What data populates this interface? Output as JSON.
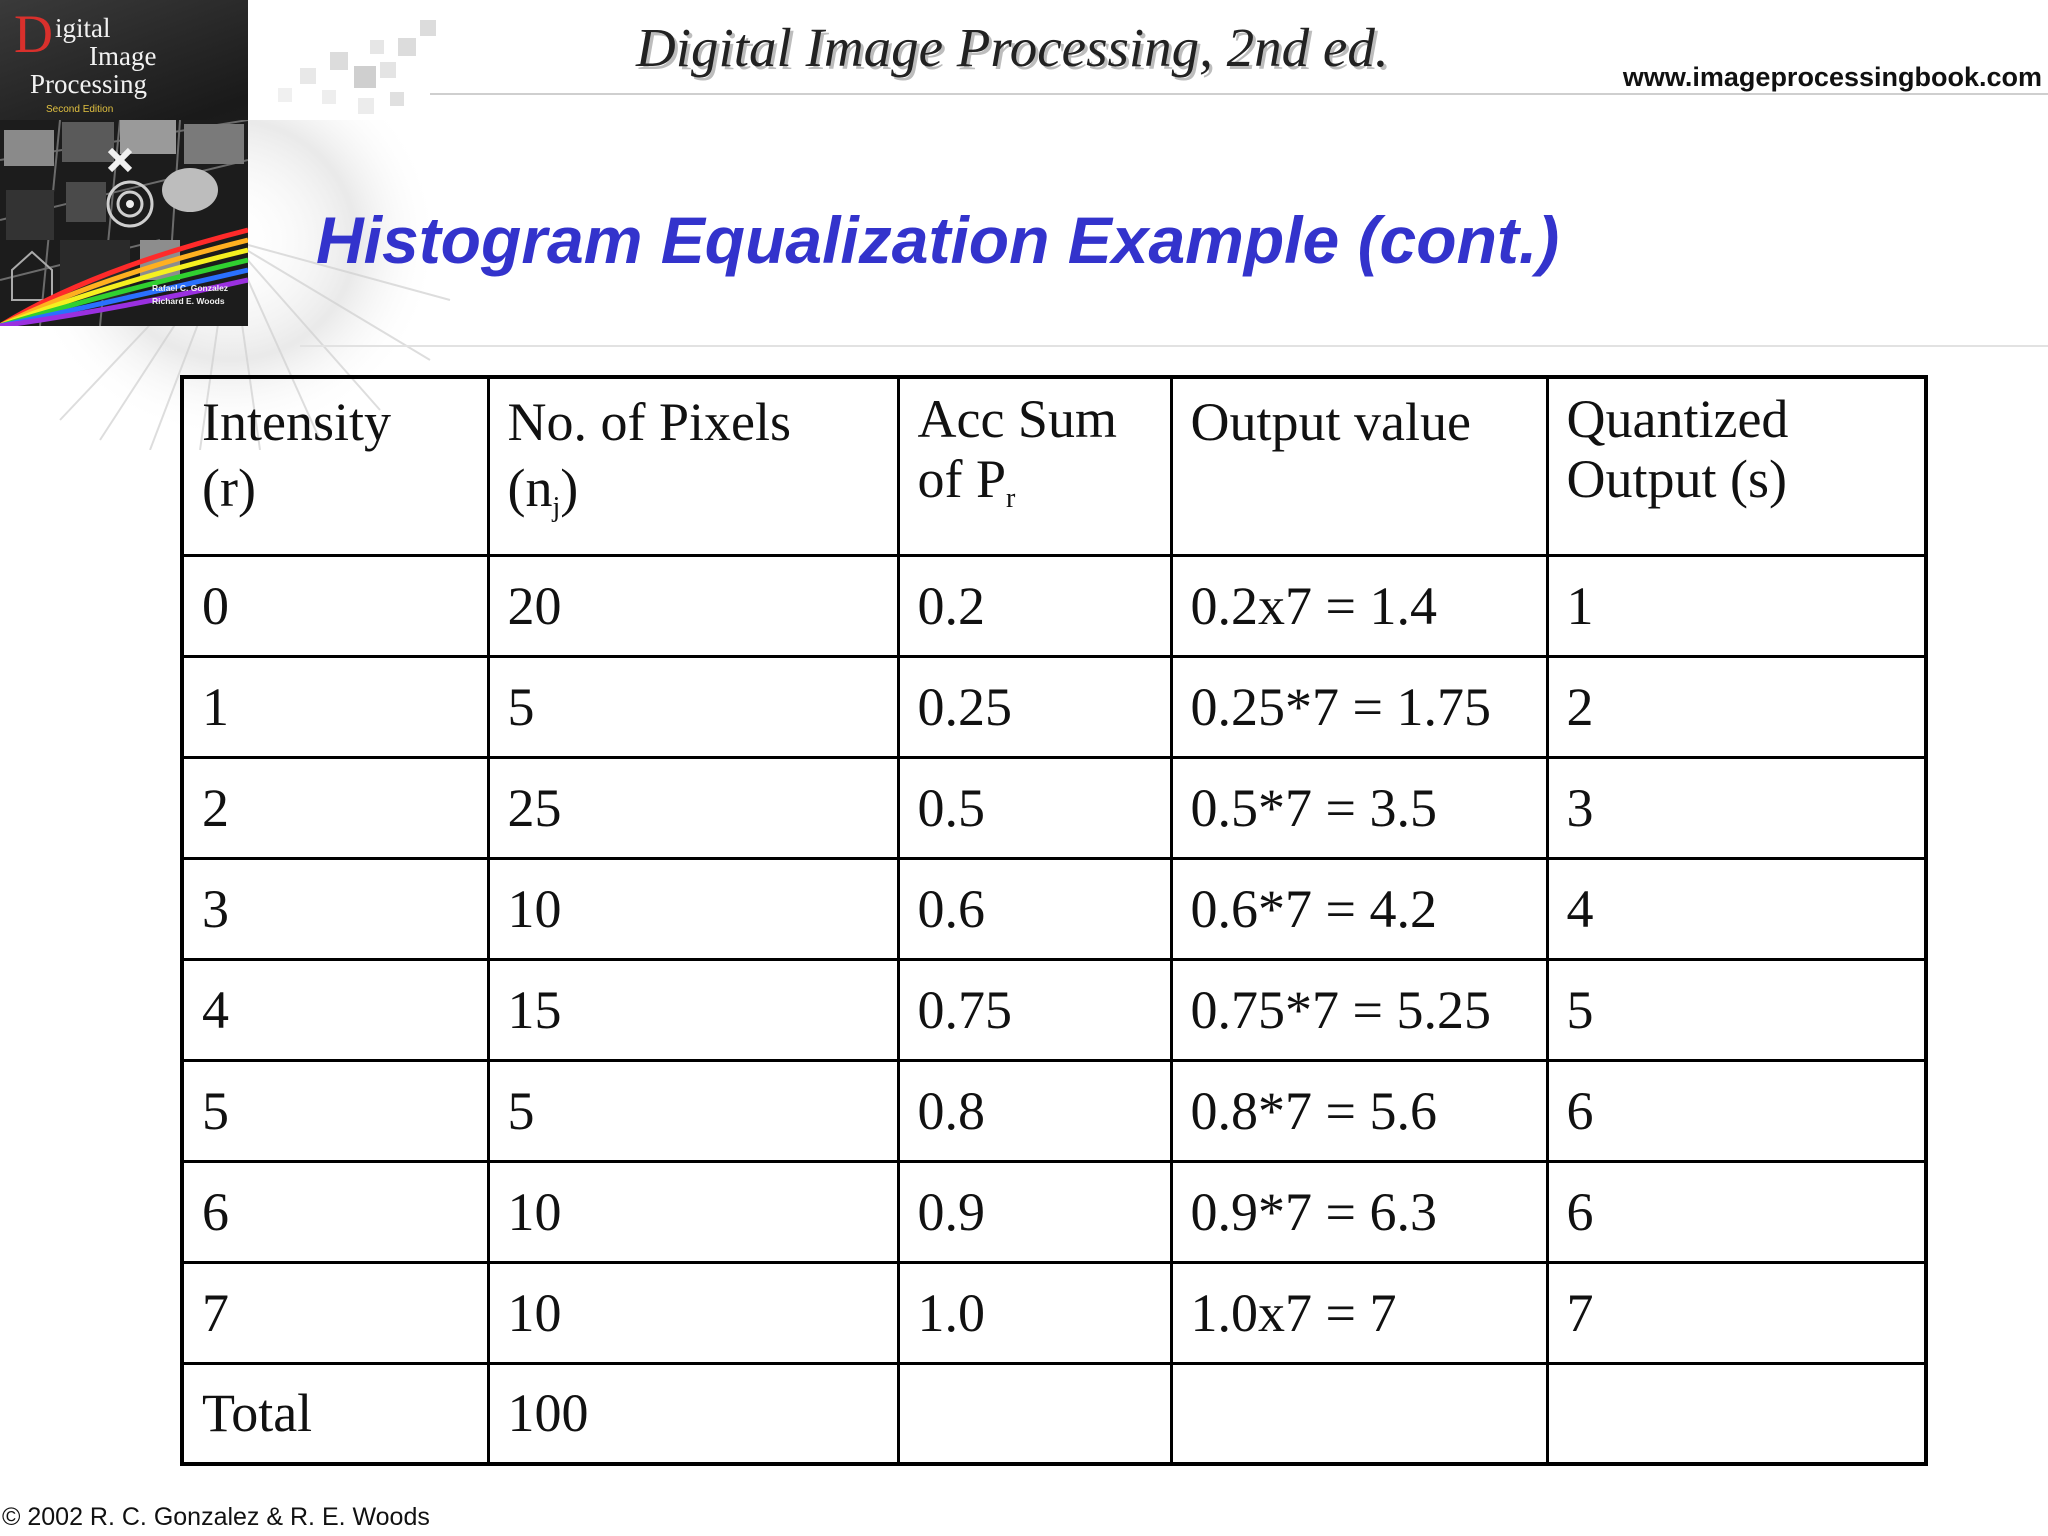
{
  "header": {
    "book_title": "Digital Image Processing, 2nd ed.",
    "website": "www.imageprocessingbook.com",
    "cover": {
      "title_first_letter": "D",
      "title_line1_rest": "igital",
      "title_line2": "Image",
      "title_line3": "Processing",
      "edition": "Second Edition",
      "author1": "Rafael C. Gonzalez",
      "author2": "Richard E. Woods"
    }
  },
  "slide": {
    "title": "Histogram Equalization Example (cont.)"
  },
  "table": {
    "headers": [
      {
        "line1": "Intensity",
        "line2": "(r)"
      },
      {
        "line1": "No. of Pixels",
        "line2_pre": "(n",
        "line2_sub": "j",
        "line2_post": ")"
      },
      {
        "line1": "Acc Sum",
        "line2_pre": "of P",
        "line2_sub": "r"
      },
      {
        "line1": "Output value"
      },
      {
        "line1": "Quantized",
        "line2": "Output (s)"
      }
    ],
    "rows": [
      [
        "0",
        "20",
        "0.2",
        "0.2x7 = 1.4",
        "1"
      ],
      [
        "1",
        "5",
        "0.25",
        "0.25*7 = 1.75",
        "2"
      ],
      [
        "2",
        "25",
        "0.5",
        "0.5*7 = 3.5",
        "3"
      ],
      [
        "3",
        "10",
        "0.6",
        "0.6*7 = 4.2",
        "4"
      ],
      [
        "4",
        "15",
        "0.75",
        "0.75*7 = 5.25",
        "5"
      ],
      [
        "5",
        "5",
        "0.8",
        "0.8*7 = 5.6",
        "6"
      ],
      [
        "6",
        "10",
        "0.9",
        "0.9*7 = 6.3",
        "6"
      ],
      [
        "7",
        "10",
        "1.0",
        "1.0x7 = 7",
        "7"
      ],
      [
        "Total",
        "100",
        "",
        "",
        ""
      ]
    ]
  },
  "footer": {
    "copyright": "© 2002 R. C. Gonzalez & R. E. Woods"
  }
}
